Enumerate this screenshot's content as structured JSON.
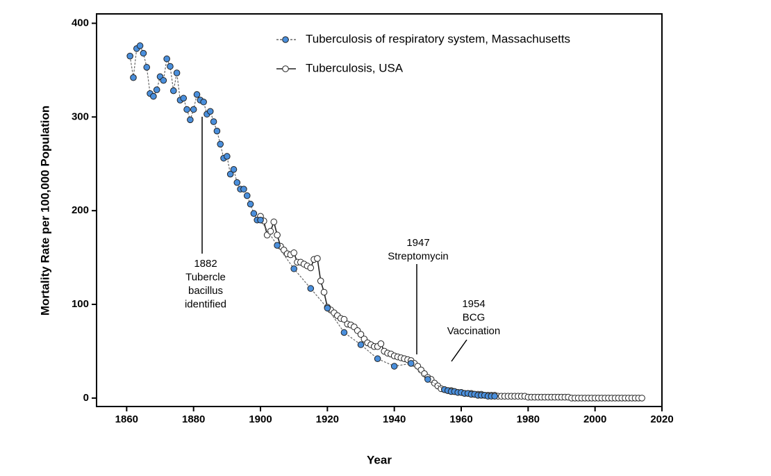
{
  "chart_data": {
    "type": "line",
    "xlabel": "Year",
    "ylabel": "Mortality Rate per 100,000 Population",
    "xlim": [
      1851,
      2020
    ],
    "ylim": [
      -9,
      410
    ],
    "xticks": [
      1860,
      1880,
      1900,
      1920,
      1940,
      1960,
      1980,
      2000,
      2020
    ],
    "yticks": [
      0,
      100,
      200,
      300,
      400
    ],
    "series": [
      {
        "name": "Tuberculosis of respiratory system, Massachusetts",
        "color": "#4a8fdc",
        "line_color": "#666666",
        "line_style": "dashed",
        "x": [
          1861,
          1862,
          1863,
          1864,
          1865,
          1866,
          1867,
          1868,
          1869,
          1870,
          1871,
          1872,
          1873,
          1874,
          1875,
          1876,
          1877,
          1878,
          1879,
          1880,
          1881,
          1882,
          1883,
          1884,
          1885,
          1886,
          1887,
          1888,
          1889,
          1890,
          1891,
          1892,
          1893,
          1894,
          1895,
          1896,
          1897,
          1898,
          1899,
          1900,
          1905,
          1910,
          1915,
          1920,
          1925,
          1930,
          1935,
          1940,
          1945,
          1950,
          1955,
          1956,
          1957,
          1958,
          1959,
          1960,
          1961,
          1962,
          1963,
          1964,
          1965,
          1966,
          1967,
          1968,
          1969,
          1970
        ],
        "values": [
          365,
          342,
          373,
          376,
          368,
          353,
          325,
          322,
          329,
          343,
          339,
          362,
          354,
          328,
          347,
          318,
          320,
          308,
          297,
          308,
          324,
          318,
          316,
          303,
          306,
          295,
          285,
          271,
          256,
          258,
          239,
          244,
          230,
          223,
          223,
          216,
          207,
          197,
          190,
          190,
          163,
          138,
          117,
          96,
          70,
          57,
          42,
          34,
          37,
          20,
          9,
          8,
          7,
          7,
          6,
          6,
          5,
          5,
          4,
          4,
          3,
          3,
          3,
          2,
          2,
          2
        ]
      },
      {
        "name": "Tuberculosis, USA",
        "color": "#ffffff",
        "line_color": "#222222",
        "line_style": "solid",
        "x": [
          1900,
          1901,
          1902,
          1903,
          1904,
          1905,
          1906,
          1907,
          1908,
          1909,
          1910,
          1911,
          1912,
          1913,
          1914,
          1915,
          1916,
          1917,
          1918,
          1919,
          1920,
          1921,
          1922,
          1923,
          1924,
          1925,
          1926,
          1927,
          1928,
          1929,
          1930,
          1931,
          1932,
          1933,
          1934,
          1935,
          1936,
          1937,
          1938,
          1939,
          1940,
          1941,
          1942,
          1943,
          1944,
          1945,
          1946,
          1947,
          1948,
          1949,
          1950,
          1951,
          1952,
          1953,
          1954,
          1955,
          1956,
          1957,
          1958,
          1959,
          1960,
          1961,
          1962,
          1963,
          1964,
          1965,
          1966,
          1967,
          1968,
          1969,
          1970,
          1971,
          1972,
          1973,
          1974,
          1975,
          1976,
          1977,
          1978,
          1979,
          1980,
          1981,
          1982,
          1983,
          1984,
          1985,
          1986,
          1987,
          1988,
          1989,
          1990,
          1991,
          1992,
          1993,
          1994,
          1995,
          1996,
          1997,
          1998,
          1999,
          2000,
          2001,
          2002,
          2003,
          2004,
          2005,
          2006,
          2007,
          2008,
          2009,
          2010,
          2011,
          2012,
          2013,
          2014
        ],
        "values": [
          194,
          189,
          174,
          178,
          188,
          174,
          162,
          158,
          154,
          153,
          155,
          145,
          145,
          143,
          141,
          139,
          148,
          149,
          125,
          113,
          97,
          94,
          91,
          88,
          85,
          84,
          79,
          78,
          76,
          72,
          68,
          63,
          59,
          57,
          55,
          55,
          58,
          50,
          48,
          47,
          45,
          44,
          43,
          42,
          41,
          40,
          37,
          34,
          30,
          26,
          22,
          20,
          16,
          13,
          10,
          9,
          8,
          8,
          7,
          6,
          6,
          5,
          5,
          5,
          4,
          4,
          4,
          3,
          3,
          3,
          3,
          2,
          2,
          2,
          2,
          2,
          2,
          2,
          2,
          2,
          1,
          1,
          1,
          1,
          1,
          1,
          1,
          1,
          1,
          1,
          1,
          1,
          1,
          0,
          0,
          0,
          0,
          0,
          0,
          0,
          0,
          0,
          0,
          0,
          0,
          0,
          0,
          0,
          0,
          0,
          0,
          0,
          0,
          0,
          0
        ]
      }
    ],
    "annotations": [
      {
        "lines": [
          "1882",
          "Tubercle",
          "bacillus",
          "identified"
        ]
      },
      {
        "lines": [
          "1947",
          "Streptomycin"
        ]
      },
      {
        "lines": [
          "1954",
          "BCG",
          "Vaccination"
        ]
      }
    ]
  }
}
